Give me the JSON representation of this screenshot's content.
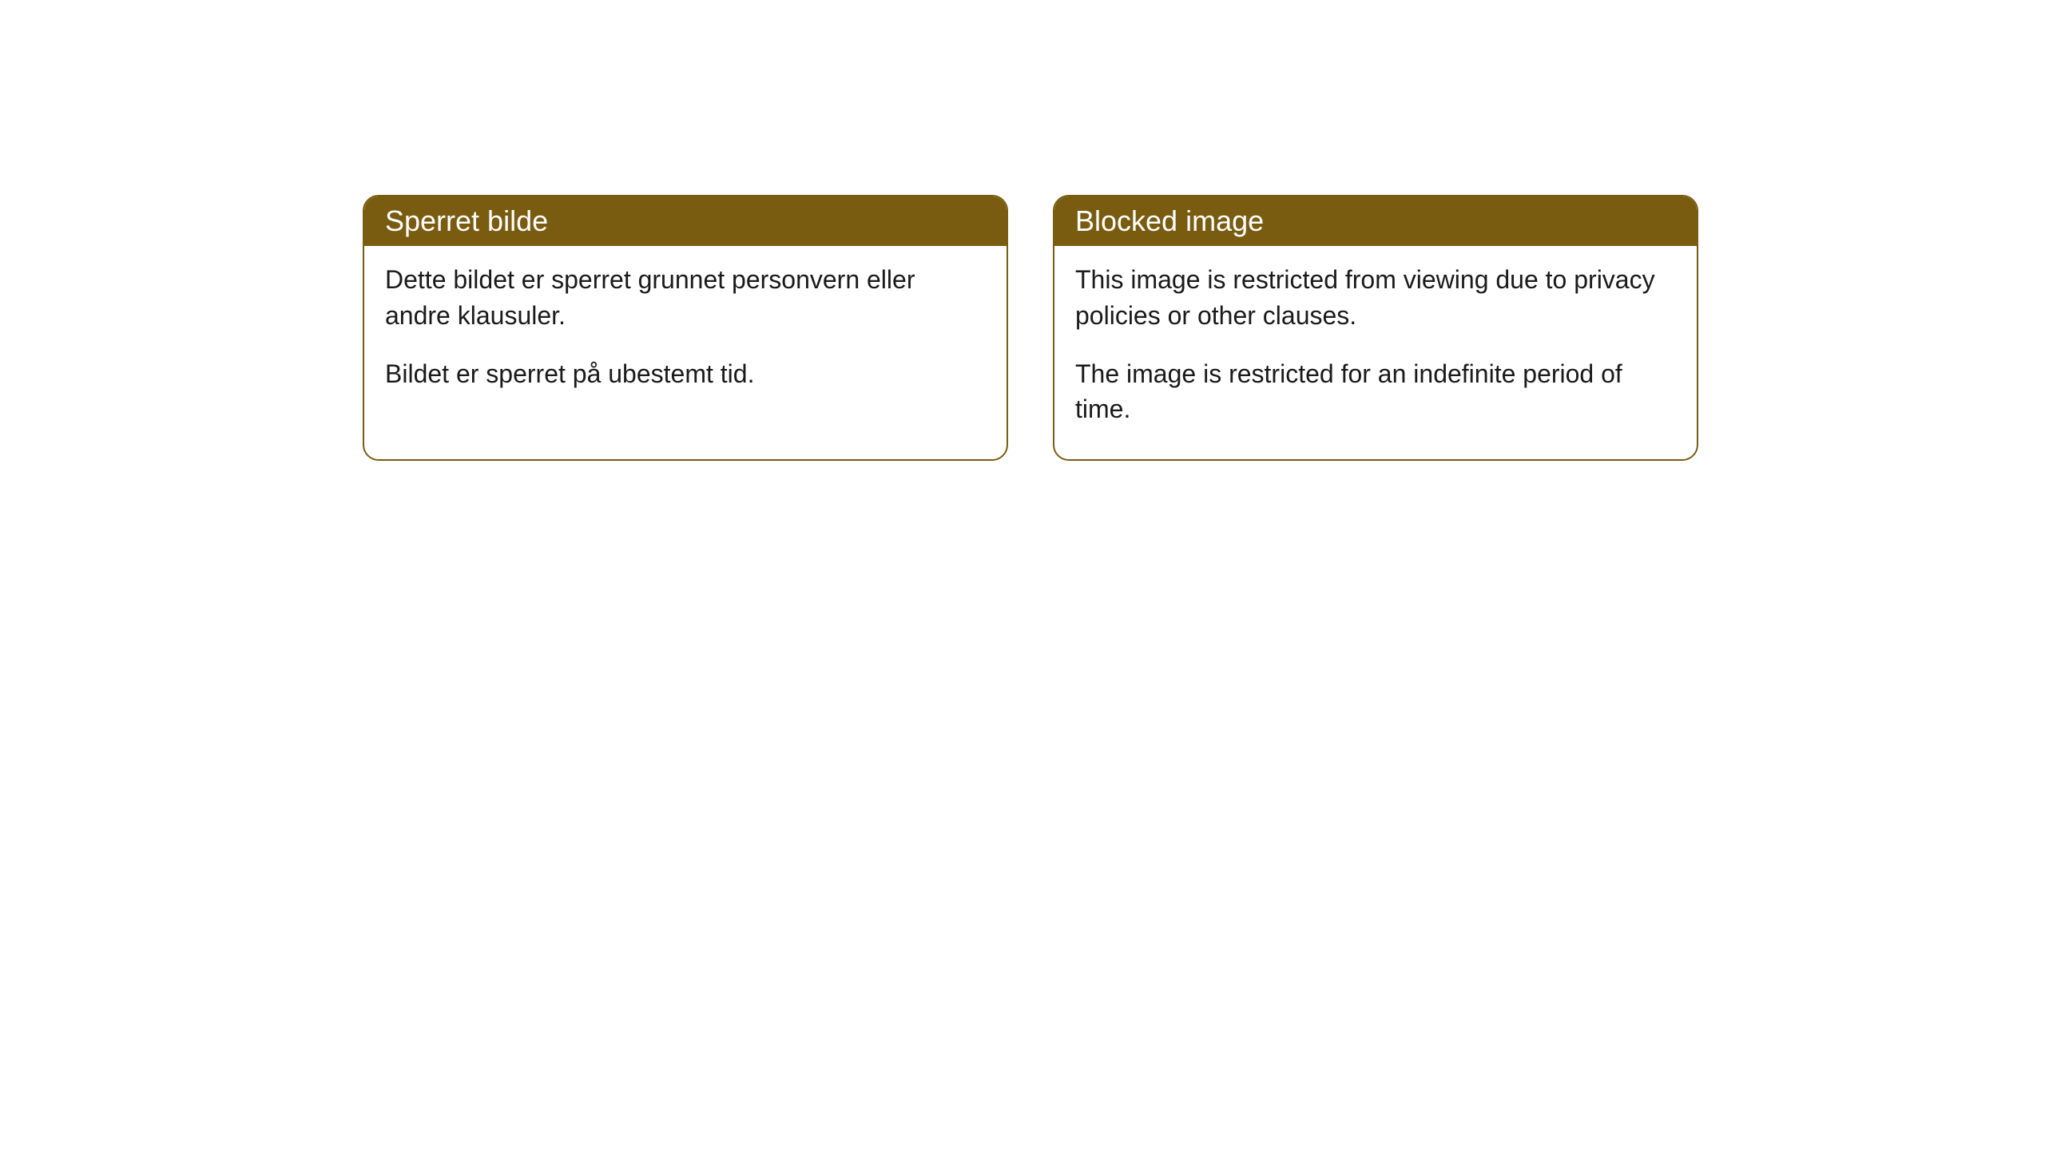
{
  "cards": [
    {
      "header": "Sperret bilde",
      "paragraph1": "Dette bildet er sperret grunnet personvern eller andre klausuler.",
      "paragraph2": "Bildet er sperret på ubestemt tid."
    },
    {
      "header": "Blocked image",
      "paragraph1": "This image is restricted from viewing due to privacy policies or other clauses.",
      "paragraph2": "The image is restricted for an indefinite period of time."
    }
  ],
  "styling": {
    "header_bg_color": "#7a5c10",
    "header_text_color": "#ffffff",
    "border_color": "#7a5c10",
    "body_text_color": "#1a1a1a",
    "background_color": "#ffffff",
    "border_radius": 20,
    "header_fontsize": 36,
    "body_fontsize": 32
  }
}
